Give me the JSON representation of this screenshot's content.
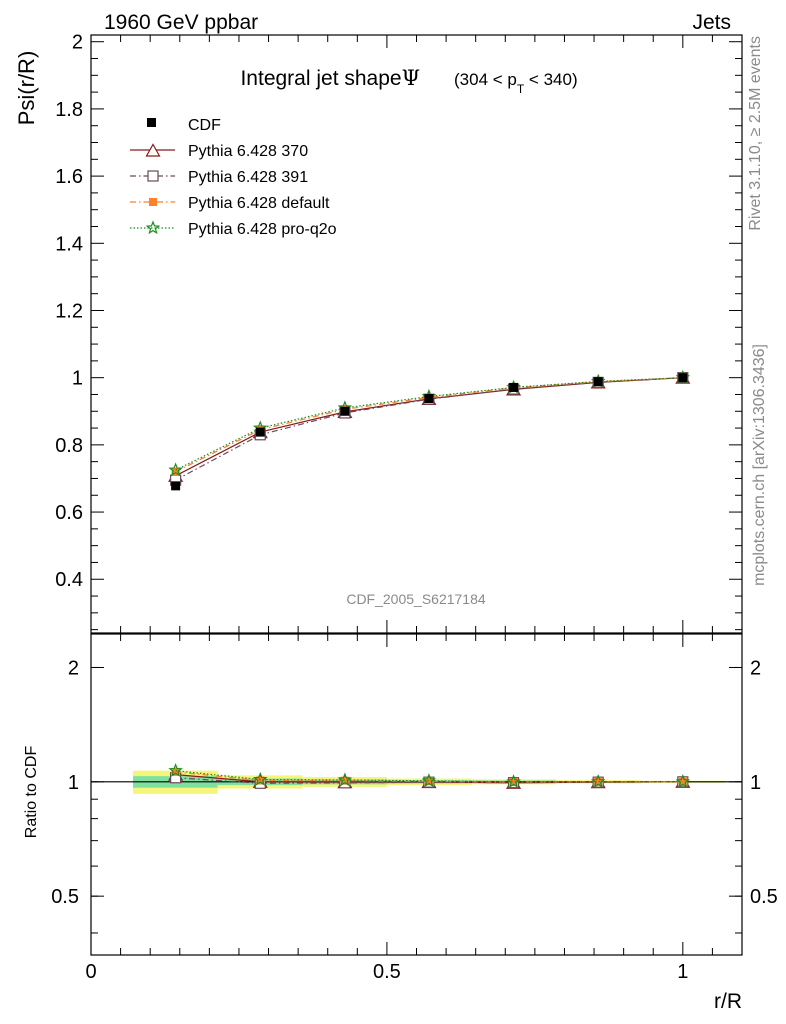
{
  "header": {
    "left": "1960 GeV ppbar",
    "right": "Jets"
  },
  "side": {
    "rivet": "Rivet 3.1.10, ≥ 2.5M events",
    "mcplots": "mcplots.cern.ch [arXiv:1306.3436]"
  },
  "plot_title": {
    "main": "Integral jet shape",
    "psi": "Ψ",
    "range_open": "(304 < p",
    "range_sub": "T",
    "range_close": " < 340)"
  },
  "watermark": "CDF_2005_S6217184",
  "legend": {
    "cdf": "CDF",
    "s370": "Pythia 6.428 370",
    "s391": "Pythia 6.428 391",
    "sdefault": "Pythia 6.428 default",
    "sq2o": "Pythia 6.428 pro-q2o"
  },
  "colors": {
    "data": "#000000",
    "s370": "#8b1a1a",
    "s391": "#6b4a5a",
    "sdefault": "#ff7f2a",
    "sq2o": "#1a8f1a",
    "band_inner": "#7fe0a0",
    "band_outer": "#f5f57a"
  },
  "chart_data": [
    {
      "type": "line",
      "ylabel": "Psi(r/R)",
      "xlim": [
        0,
        1.1
      ],
      "ylim": [
        0.24,
        2.02
      ],
      "y_ticks": [
        "0.4",
        "0.6",
        "0.8",
        "1",
        "1.2",
        "1.4",
        "1.6",
        "1.8",
        "2"
      ],
      "x": [
        0.143,
        0.286,
        0.429,
        0.571,
        0.714,
        0.857,
        1.0
      ],
      "data": {
        "name": "CDF",
        "values": [
          0.678,
          0.838,
          0.9,
          0.938,
          0.971,
          0.988,
          1.0
        ]
      },
      "series": [
        {
          "name": "Pythia 6.428 370",
          "values": [
            0.708,
            0.838,
            0.898,
            0.937,
            0.965,
            0.986,
            1.0
          ]
        },
        {
          "name": "Pythia 6.428 391",
          "values": [
            0.695,
            0.83,
            0.895,
            0.936,
            0.966,
            0.986,
            1.0
          ]
        },
        {
          "name": "Pythia 6.428 default",
          "values": [
            0.72,
            0.845,
            0.906,
            0.941,
            0.97,
            0.988,
            1.0
          ]
        },
        {
          "name": "Pythia 6.428 pro-q2o",
          "values": [
            0.725,
            0.85,
            0.91,
            0.944,
            0.971,
            0.989,
            1.0
          ]
        }
      ]
    },
    {
      "type": "line",
      "ylabel": "Ratio to CDF",
      "xlabel": "r/R",
      "log_y": true,
      "xlim": [
        0,
        1.1
      ],
      "ylim": [
        0.35,
        2.45
      ],
      "x_ticks": [
        "0",
        "0.5",
        "1"
      ],
      "y_ticks": [
        "0.5",
        "1",
        "2"
      ],
      "x": [
        0.143,
        0.286,
        0.429,
        0.571,
        0.714,
        0.857,
        1.0
      ],
      "bin_edges": [
        0.071,
        0.214,
        0.357,
        0.5,
        0.643,
        0.786,
        0.929,
        1.071
      ],
      "band_inner": [
        0.035,
        0.02,
        0.015,
        0.01,
        0.008,
        0.005,
        0.003
      ],
      "band_outer": [
        0.07,
        0.04,
        0.03,
        0.02,
        0.015,
        0.01,
        0.006
      ],
      "series": [
        {
          "name": "Pythia 6.428 370",
          "values": [
            1.045,
            1.0,
            0.998,
            0.999,
            0.994,
            0.998,
            1.0
          ]
        },
        {
          "name": "Pythia 6.428 391",
          "values": [
            1.025,
            0.991,
            0.994,
            0.998,
            0.995,
            0.998,
            1.0
          ]
        },
        {
          "name": "Pythia 6.428 default",
          "values": [
            1.062,
            1.008,
            1.007,
            1.003,
            0.999,
            1.0,
            1.0
          ]
        },
        {
          "name": "Pythia 6.428 pro-q2o",
          "values": [
            1.07,
            1.014,
            1.011,
            1.006,
            1.0,
            1.001,
            1.0
          ]
        }
      ]
    }
  ]
}
